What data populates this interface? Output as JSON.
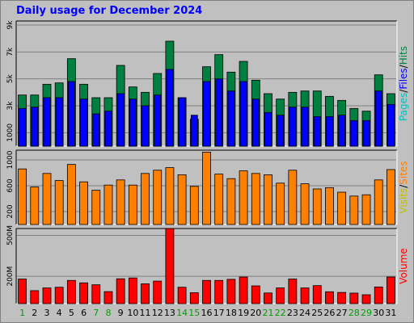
{
  "title": "Daily usage for December 2024",
  "colors": {
    "pages": "#00c0c0",
    "files": "#0000ff",
    "hits": "#008040",
    "visits": "#c0c000",
    "sites": "#ff8000",
    "volume": "#ff0000",
    "weekend_day": "#00a000",
    "weekday": "#000000",
    "grid": "#808080",
    "panel_bg": "#c0c0c0"
  },
  "chart_data": [
    {
      "type": "bar",
      "panel": "pages-files-hits",
      "ylabel_parts": [
        "Pages",
        "/",
        "Files",
        "/",
        "Hits"
      ],
      "yticks": [
        "1000",
        "3k",
        "5k",
        "7k",
        "9k"
      ],
      "ylim": [
        0,
        9300
      ],
      "categories": [
        "1",
        "2",
        "3",
        "4",
        "5",
        "6",
        "7",
        "8",
        "9",
        "10",
        "11",
        "12",
        "13",
        "14",
        "15",
        "16",
        "17",
        "18",
        "19",
        "20",
        "21",
        "22",
        "23",
        "24",
        "25",
        "26",
        "27",
        "28",
        "29",
        "30",
        "31"
      ],
      "series": [
        {
          "name": "Hits",
          "values": [
            3800,
            3800,
            4600,
            4700,
            6500,
            4600,
            3600,
            3600,
            6000,
            4400,
            4000,
            5400,
            7800,
            3600,
            2000,
            5900,
            6800,
            5500,
            6300,
            4900,
            3900,
            3500,
            4000,
            4100,
            4100,
            3700,
            3400,
            2800,
            2600,
            5300,
            3900
          ]
        },
        {
          "name": "Files",
          "values": [
            2800,
            2900,
            3600,
            3600,
            4800,
            3500,
            2400,
            2600,
            3900,
            3500,
            3000,
            3800,
            5700,
            3600,
            2300,
            4800,
            5000,
            4100,
            4800,
            3500,
            2500,
            2300,
            2900,
            2900,
            2200,
            2200,
            2300,
            1900,
            1900,
            4100,
            3100
          ]
        },
        {
          "name": "Pages",
          "values": [
            0,
            0,
            0,
            0,
            0,
            0,
            0,
            0,
            0,
            0,
            0,
            0,
            0,
            0,
            0,
            0,
            0,
            0,
            0,
            0,
            0,
            0,
            0,
            0,
            0,
            0,
            0,
            0,
            0,
            0,
            0
          ]
        }
      ]
    },
    {
      "type": "bar",
      "panel": "visits-sites",
      "ylabel_parts": [
        "Visits",
        "/",
        "Sites"
      ],
      "yticks": [
        "200",
        "600",
        "1000"
      ],
      "ylim": [
        0,
        1150
      ],
      "series": [
        {
          "name": "Sites",
          "values": [
            860,
            580,
            790,
            680,
            930,
            660,
            530,
            610,
            690,
            610,
            790,
            840,
            880,
            770,
            590,
            1120,
            780,
            710,
            830,
            790,
            770,
            640,
            840,
            630,
            550,
            570,
            500,
            440,
            460,
            690,
            850
          ]
        },
        {
          "name": "Visits",
          "values": [
            0,
            0,
            0,
            0,
            0,
            0,
            0,
            0,
            0,
            0,
            0,
            0,
            0,
            0,
            0,
            0,
            0,
            0,
            0,
            0,
            0,
            0,
            0,
            0,
            0,
            0,
            0,
            0,
            0,
            0,
            0
          ]
        }
      ]
    },
    {
      "type": "bar",
      "panel": "volume",
      "ylabel_parts": [
        "Volume"
      ],
      "yticks": [
        "200M",
        "500M"
      ],
      "ylim": [
        0,
        550
      ],
      "series": [
        {
          "name": "Volume",
          "values": [
            180,
            95,
            115,
            120,
            170,
            152,
            138,
            88,
            182,
            188,
            145,
            165,
            550,
            120,
            80,
            170,
            170,
            178,
            195,
            130,
            78,
            115,
            180,
            115,
            132,
            87,
            82,
            77,
            65,
            122,
            195
          ]
        }
      ]
    }
  ],
  "weekend_days": [
    "1",
    "7",
    "8",
    "14",
    "15",
    "21",
    "22",
    "28",
    "29"
  ]
}
